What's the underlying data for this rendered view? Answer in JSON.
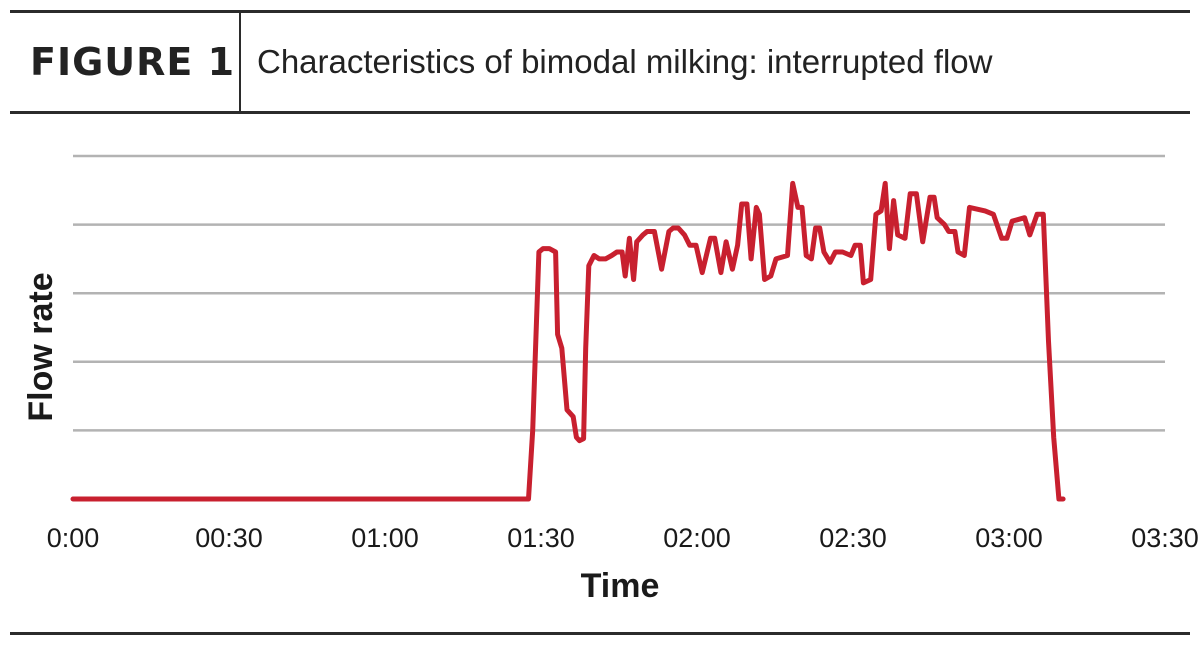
{
  "figure": {
    "label": "FIGURE 1",
    "title": "Characteristics of bimodal milking: interrupted flow"
  },
  "chart_data": {
    "type": "line",
    "title": "Characteristics of bimodal milking: interrupted flow",
    "xlabel": "Time",
    "ylabel": "Flow rate",
    "x_unit": "seconds",
    "xlim": [
      0,
      210
    ],
    "ylim": [
      0,
      5
    ],
    "grid": "horizontal",
    "yticks_count": 6,
    "xticks": [
      {
        "value": 0,
        "label": "0:00"
      },
      {
        "value": 30,
        "label": "00:30"
      },
      {
        "value": 60,
        "label": "01:00"
      },
      {
        "value": 90,
        "label": "01:30"
      },
      {
        "value": 120,
        "label": "02:00"
      },
      {
        "value": 150,
        "label": "02:30"
      },
      {
        "value": 180,
        "label": "03:00"
      },
      {
        "value": 210,
        "label": "03:30"
      }
    ],
    "line_color": "#c8202f",
    "series": [
      {
        "points": [
          [
            0,
            0
          ],
          [
            87.6,
            0
          ],
          [
            88.4,
            1.0
          ],
          [
            89.6,
            3.6
          ],
          [
            90.4,
            3.65
          ],
          [
            91.6,
            3.65
          ],
          [
            92.8,
            3.6
          ],
          [
            93.2,
            2.4
          ],
          [
            94,
            2.2
          ],
          [
            95,
            1.3
          ],
          [
            96.2,
            1.2
          ],
          [
            96.8,
            0.9
          ],
          [
            97.4,
            0.85
          ],
          [
            98.2,
            0.88
          ],
          [
            98.6,
            2.2
          ],
          [
            99.2,
            3.4
          ],
          [
            100.2,
            3.55
          ],
          [
            101.2,
            3.5
          ],
          [
            102.4,
            3.5
          ],
          [
            103.6,
            3.55
          ],
          [
            104.6,
            3.6
          ],
          [
            105.6,
            3.6
          ],
          [
            106.2,
            3.25
          ],
          [
            107,
            3.8
          ],
          [
            107.8,
            3.2
          ],
          [
            108.4,
            3.75
          ],
          [
            109.6,
            3.85
          ],
          [
            110.4,
            3.9
          ],
          [
            111.8,
            3.9
          ],
          [
            113.2,
            3.35
          ],
          [
            114.6,
            3.9
          ],
          [
            115.4,
            3.95
          ],
          [
            116.4,
            3.95
          ],
          [
            117.6,
            3.85
          ],
          [
            118.6,
            3.7
          ],
          [
            119.8,
            3.7
          ],
          [
            121,
            3.3
          ],
          [
            122.6,
            3.8
          ],
          [
            123.4,
            3.8
          ],
          [
            124.6,
            3.3
          ],
          [
            125.6,
            3.75
          ],
          [
            126.8,
            3.35
          ],
          [
            127.8,
            3.7
          ],
          [
            128.6,
            4.3
          ],
          [
            129.6,
            4.3
          ],
          [
            130.4,
            3.5
          ],
          [
            131.4,
            4.25
          ],
          [
            132,
            4.15
          ],
          [
            133,
            3.2
          ],
          [
            134.2,
            3.25
          ],
          [
            135.2,
            3.5
          ],
          [
            137.4,
            3.55
          ],
          [
            138.4,
            4.6
          ],
          [
            139.4,
            4.25
          ],
          [
            140.2,
            4.25
          ],
          [
            141,
            3.55
          ],
          [
            142,
            3.5
          ],
          [
            142.8,
            3.95
          ],
          [
            143.6,
            3.95
          ],
          [
            144.4,
            3.6
          ],
          [
            145.6,
            3.45
          ],
          [
            146.6,
            3.6
          ],
          [
            148,
            3.6
          ],
          [
            149.6,
            3.55
          ],
          [
            150.4,
            3.7
          ],
          [
            151.4,
            3.7
          ],
          [
            152,
            3.15
          ],
          [
            153.4,
            3.2
          ],
          [
            154.4,
            4.15
          ],
          [
            155.4,
            4.2
          ],
          [
            156.2,
            4.6
          ],
          [
            157,
            3.65
          ],
          [
            157.8,
            4.35
          ],
          [
            158.6,
            3.85
          ],
          [
            160,
            3.8
          ],
          [
            161,
            4.45
          ],
          [
            162.2,
            4.45
          ],
          [
            163.4,
            3.75
          ],
          [
            164.8,
            4.4
          ],
          [
            165.6,
            4.4
          ],
          [
            166.2,
            4.1
          ],
          [
            167.6,
            4.0
          ],
          [
            168.4,
            3.9
          ],
          [
            169.6,
            3.9
          ],
          [
            170.2,
            3.6
          ],
          [
            171.4,
            3.55
          ],
          [
            172.4,
            4.25
          ],
          [
            175.4,
            4.2
          ],
          [
            177,
            4.15
          ],
          [
            178.6,
            3.8
          ],
          [
            179.6,
            3.8
          ],
          [
            180.6,
            4.05
          ],
          [
            183,
            4.1
          ],
          [
            184,
            3.85
          ],
          [
            185.4,
            4.15
          ],
          [
            186.6,
            4.15
          ],
          [
            187.6,
            2.3
          ],
          [
            188.6,
            0.9
          ],
          [
            189.6,
            0
          ],
          [
            190.4,
            0
          ]
        ]
      }
    ]
  }
}
